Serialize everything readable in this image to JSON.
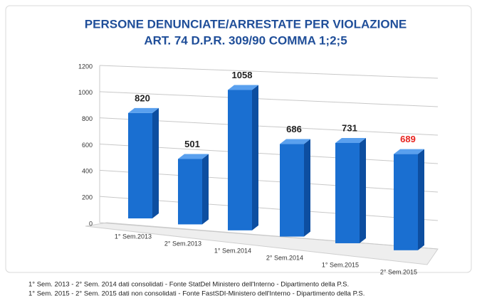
{
  "chart_data": {
    "type": "bar3d",
    "title": [
      "PERSONE DENUNCIATE/ARRESTATE PER VIOLAZIONE",
      "ART. 74 D.P.R. 309/90 COMMA 1;2;5"
    ],
    "categories": [
      "1° Sem.2013",
      "2° Sem.2013",
      "1° Sem.2014",
      "2° Sem.2014",
      "1° Sem.2015",
      "2° Sem.2015"
    ],
    "values": [
      820,
      501,
      1058,
      686,
      731,
      689
    ],
    "value_label_colors": [
      "#222222",
      "#222222",
      "#222222",
      "#222222",
      "#222222",
      "#e8231e"
    ],
    "color": "#1a6fd1",
    "ylim": [
      0,
      1200
    ],
    "yticks": [
      0,
      200,
      400,
      600,
      800,
      1000,
      1200
    ],
    "grid": true,
    "notes": [
      "1° Sem. 2013 - 2° Sem. 2014 dati consolidati - Fonte StatDel Ministero dell'Interno - Dipartimento della P.S.",
      "1° Sem. 2015 - 2° Sem. 2015 dati non consolidati - Fonte FastSDI-Ministero dell'Interno - Dipartimento della P.S."
    ]
  }
}
